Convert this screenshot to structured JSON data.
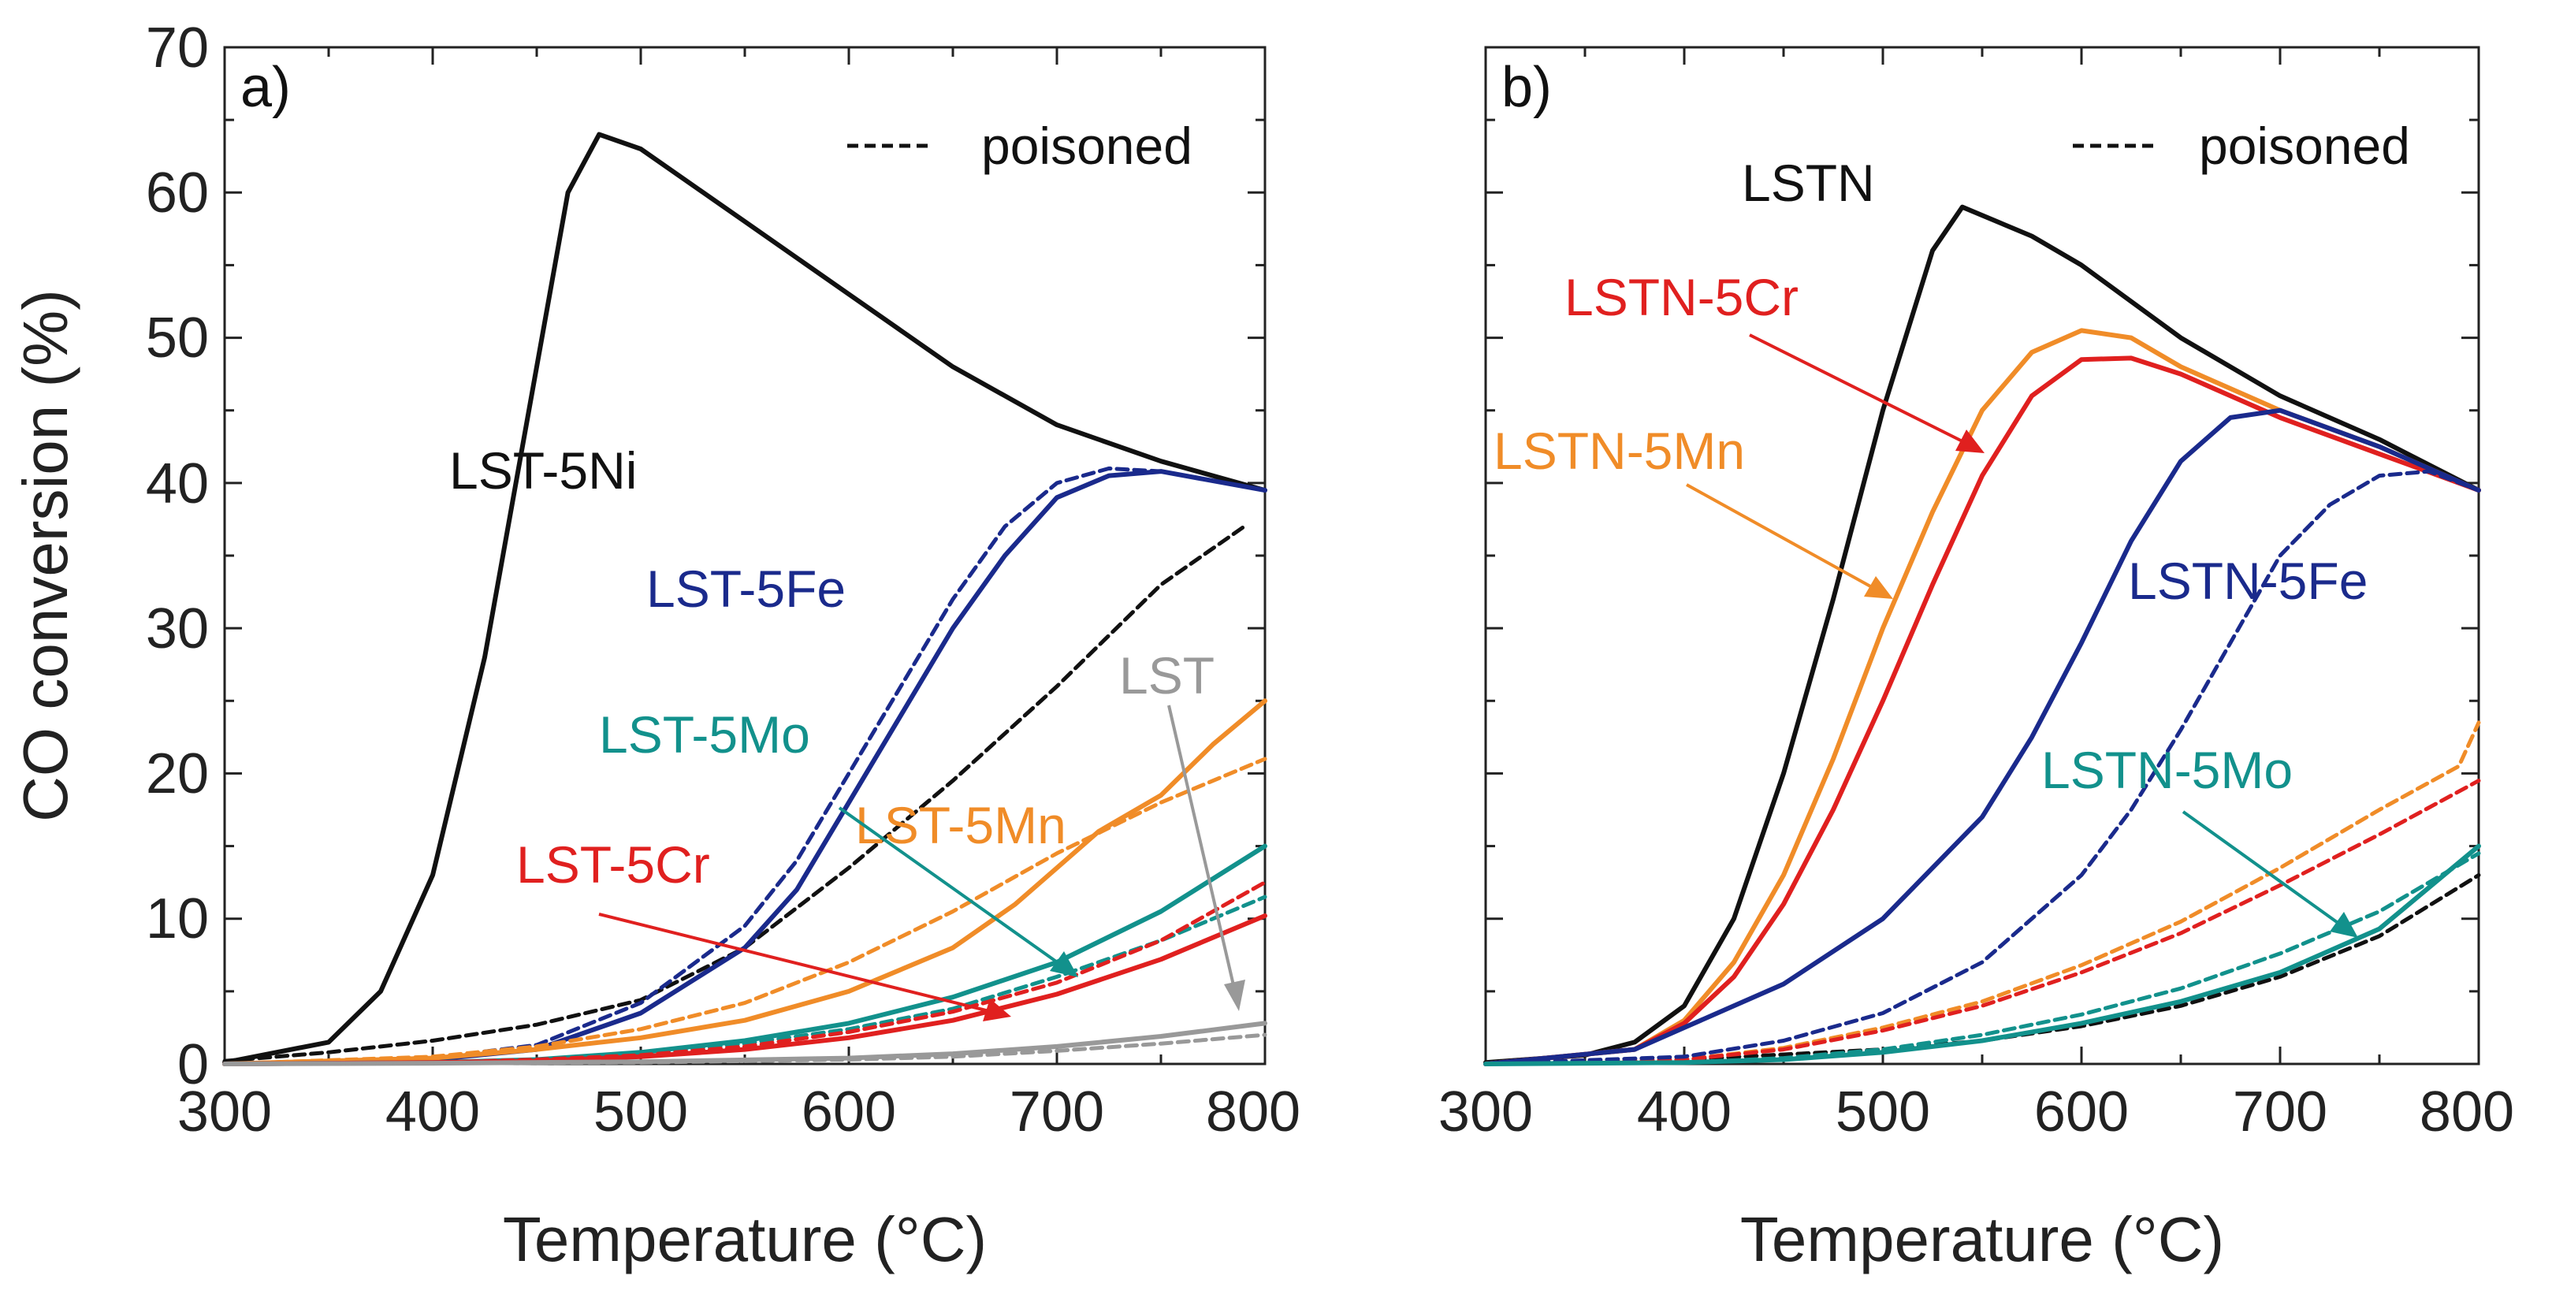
{
  "chart_data": [
    {
      "type": "line",
      "panel_label": "a)",
      "xlabel": "Temperature (°C)",
      "ylabel": "CO conversion (%)",
      "xlim": [
        300,
        800
      ],
      "ylim": [
        0,
        70
      ],
      "xticks": [
        "300",
        "400",
        "500",
        "600",
        "700",
        "800"
      ],
      "yticks": [
        "0",
        "10",
        "20",
        "30",
        "40",
        "50",
        "60",
        "70"
      ],
      "legend": {
        "entry": "poisoned",
        "style": "dashed",
        "placement": "top-right"
      },
      "series": [
        {
          "name": "LST-5Ni",
          "color": "#111111",
          "style": "solid",
          "x": [
            300,
            350,
            375,
            400,
            425,
            450,
            465,
            480,
            500,
            550,
            600,
            650,
            700,
            750,
            800
          ],
          "y": [
            0.1,
            1.5,
            5,
            13,
            28,
            48,
            60,
            64,
            63,
            58,
            53,
            48,
            44,
            41.5,
            39.5
          ]
        },
        {
          "name": "LST-5Ni",
          "color": "#111111",
          "style": "dashed",
          "x": [
            300,
            350,
            400,
            450,
            500,
            550,
            600,
            650,
            700,
            750,
            790
          ],
          "y": [
            0.2,
            0.8,
            1.6,
            2.7,
            4.4,
            8,
            13.5,
            19.5,
            26,
            33,
            37
          ]
        },
        {
          "name": "LST-5Fe",
          "color": "#1a2a8c",
          "style": "solid",
          "x": [
            300,
            400,
            450,
            500,
            550,
            575,
            600,
            625,
            650,
            675,
            700,
            725,
            750,
            800
          ],
          "y": [
            0,
            0.3,
            1,
            3.5,
            8,
            12,
            18,
            24,
            30,
            35,
            39,
            40.5,
            40.8,
            39.5
          ]
        },
        {
          "name": "LST-5Fe",
          "color": "#1a2a8c",
          "style": "dashed",
          "x": [
            300,
            400,
            450,
            500,
            550,
            575,
            600,
            625,
            650,
            675,
            700,
            725,
            750,
            800
          ],
          "y": [
            0,
            0.4,
            1.3,
            4.2,
            9.5,
            14,
            20,
            26,
            32,
            37,
            40,
            41,
            40.8,
            39.5
          ]
        },
        {
          "name": "LST-5Mn",
          "color": "#f08c28",
          "style": "solid",
          "x": [
            300,
            400,
            450,
            500,
            550,
            600,
            650,
            680,
            700,
            720,
            750,
            775,
            800
          ],
          "y": [
            0,
            0.4,
            1,
            1.8,
            3,
            5,
            8,
            11,
            13.5,
            16,
            18.5,
            22,
            25
          ]
        },
        {
          "name": "LST-5Mn",
          "color": "#f08c28",
          "style": "dashed",
          "x": [
            300,
            400,
            450,
            500,
            550,
            600,
            650,
            700,
            750,
            800
          ],
          "y": [
            0,
            0.5,
            1.2,
            2.4,
            4.2,
            7,
            10.5,
            14.5,
            18,
            21
          ]
        },
        {
          "name": "LST-5Mo",
          "color": "#12918c",
          "style": "solid",
          "x": [
            300,
            400,
            450,
            500,
            550,
            600,
            650,
            700,
            750,
            800
          ],
          "y": [
            0,
            0.1,
            0.3,
            0.8,
            1.6,
            2.8,
            4.6,
            7,
            10.5,
            15
          ]
        },
        {
          "name": "LST-5Mo",
          "color": "#12918c",
          "style": "dashed",
          "x": [
            300,
            400,
            450,
            500,
            550,
            600,
            650,
            700,
            750,
            800
          ],
          "y": [
            0,
            0.1,
            0.3,
            0.7,
            1.4,
            2.4,
            3.8,
            6,
            8.5,
            11.5
          ]
        },
        {
          "name": "LST-5Cr",
          "color": "#e0201f",
          "style": "solid",
          "x": [
            300,
            400,
            450,
            500,
            550,
            600,
            650,
            700,
            750,
            800
          ],
          "y": [
            0,
            0.1,
            0.2,
            0.5,
            1,
            1.8,
            3,
            4.8,
            7.2,
            10.2
          ]
        },
        {
          "name": "LST-5Cr",
          "color": "#e0201f",
          "style": "dashed",
          "x": [
            300,
            400,
            450,
            500,
            550,
            600,
            650,
            700,
            750,
            800
          ],
          "y": [
            0,
            0.1,
            0.3,
            0.6,
            1.2,
            2.2,
            3.6,
            5.6,
            8.5,
            12.5
          ]
        },
        {
          "name": "LST",
          "color": "#999999",
          "style": "solid",
          "x": [
            300,
            400,
            500,
            600,
            650,
            700,
            750,
            800
          ],
          "y": [
            0,
            0.05,
            0.15,
            0.4,
            0.7,
            1.2,
            1.9,
            2.8
          ]
        },
        {
          "name": "LST",
          "color": "#999999",
          "style": "dashed",
          "x": [
            300,
            400,
            500,
            600,
            650,
            700,
            750,
            800
          ],
          "y": [
            0,
            0.05,
            0.1,
            0.3,
            0.5,
            0.9,
            1.4,
            2
          ]
        }
      ],
      "labels": [
        {
          "text": "LST-5Ni",
          "color": "#111111"
        },
        {
          "text": "LST-5Fe",
          "color": "#1a2a8c"
        },
        {
          "text": "LST",
          "color": "#999999"
        },
        {
          "text": "LST-5Mo",
          "color": "#12918c"
        },
        {
          "text": "LST-5Mn",
          "color": "#f08c28"
        },
        {
          "text": "LST-5Cr",
          "color": "#e0201f"
        }
      ]
    },
    {
      "type": "line",
      "panel_label": "b)",
      "xlabel": "Temperature (°C)",
      "ylabel": "",
      "xlim": [
        300,
        800
      ],
      "ylim": [
        0,
        70
      ],
      "xticks": [
        "300",
        "400",
        "500",
        "600",
        "700",
        "800"
      ],
      "yticks": [
        "0",
        "10",
        "20",
        "30",
        "40",
        "50",
        "60",
        "70"
      ],
      "legend": {
        "entry": "poisoned",
        "style": "dashed",
        "placement": "top-right"
      },
      "series": [
        {
          "name": "LSTN",
          "color": "#111111",
          "style": "solid",
          "x": [
            300,
            350,
            375,
            400,
            425,
            450,
            475,
            500,
            525,
            540,
            575,
            600,
            650,
            700,
            750,
            800
          ],
          "y": [
            0.1,
            0.6,
            1.5,
            4,
            10,
            20,
            32,
            45,
            56,
            59,
            57,
            55,
            50,
            46,
            43,
            39.5
          ]
        },
        {
          "name": "LSTN",
          "color": "#111111",
          "style": "dashed",
          "x": [
            300,
            400,
            500,
            550,
            600,
            650,
            700,
            750,
            800
          ],
          "y": [
            0,
            0.3,
            1,
            1.6,
            2.6,
            4,
            6,
            8.8,
            13
          ]
        },
        {
          "name": "LSTN-5Mn",
          "color": "#f08c28",
          "style": "solid",
          "x": [
            300,
            375,
            400,
            425,
            450,
            475,
            500,
            525,
            550,
            575,
            600,
            625,
            650,
            700,
            750,
            800
          ],
          "y": [
            0,
            1,
            3,
            7,
            13,
            21,
            30,
            38,
            45,
            49,
            50.5,
            50,
            48,
            45,
            42.5,
            39.5
          ]
        },
        {
          "name": "LSTN-5Mn",
          "color": "#f08c28",
          "style": "dashed",
          "x": [
            300,
            400,
            450,
            500,
            550,
            600,
            650,
            700,
            750,
            790,
            800
          ],
          "y": [
            0,
            0.3,
            1.1,
            2.5,
            4.3,
            6.8,
            9.8,
            13.5,
            17.5,
            20.5,
            23.5
          ]
        },
        {
          "name": "LSTN-5Cr",
          "color": "#e0201f",
          "style": "solid",
          "x": [
            300,
            375,
            400,
            425,
            450,
            475,
            500,
            525,
            550,
            575,
            600,
            625,
            650,
            700,
            750,
            800
          ],
          "y": [
            0,
            1,
            2.8,
            6,
            11,
            17.5,
            25,
            33,
            40.5,
            46,
            48.5,
            48.6,
            47.5,
            44.5,
            42,
            39.5
          ]
        },
        {
          "name": "LSTN-5Cr",
          "color": "#e0201f",
          "style": "dashed",
          "x": [
            300,
            400,
            450,
            500,
            550,
            600,
            650,
            700,
            750,
            800
          ],
          "y": [
            0,
            0.3,
            1,
            2.3,
            4,
            6.3,
            9,
            12.3,
            15.8,
            19.5
          ]
        },
        {
          "name": "LSTN-5Fe",
          "color": "#1a2a8c",
          "style": "solid",
          "x": [
            300,
            375,
            400,
            450,
            500,
            550,
            575,
            600,
            625,
            650,
            675,
            700,
            750,
            800
          ],
          "y": [
            0,
            1,
            2.5,
            5.5,
            10,
            17,
            22.5,
            29,
            36,
            41.5,
            44.5,
            45,
            42.5,
            39.5
          ]
        },
        {
          "name": "LSTN-5Fe",
          "color": "#1a2a8c",
          "style": "dashed",
          "x": [
            300,
            400,
            450,
            500,
            550,
            600,
            625,
            650,
            675,
            700,
            725,
            750,
            775,
            800
          ],
          "y": [
            0,
            0.5,
            1.6,
            3.5,
            7,
            13,
            17.5,
            23,
            29,
            35,
            38.5,
            40.5,
            40.8,
            39.5
          ]
        },
        {
          "name": "LSTN-5Mo",
          "color": "#12918c",
          "style": "solid",
          "x": [
            300,
            400,
            450,
            500,
            550,
            600,
            650,
            700,
            750,
            800
          ],
          "y": [
            0,
            0.1,
            0.3,
            0.8,
            1.6,
            2.8,
            4.3,
            6.3,
            9.3,
            15
          ]
        },
        {
          "name": "LSTN-5Mo",
          "color": "#12918c",
          "style": "dashed",
          "x": [
            300,
            400,
            450,
            500,
            550,
            600,
            650,
            700,
            750,
            800
          ],
          "y": [
            0,
            0.1,
            0.4,
            1,
            2,
            3.4,
            5.2,
            7.6,
            10.5,
            14.5
          ]
        }
      ],
      "labels": [
        {
          "text": "LSTN",
          "color": "#111111"
        },
        {
          "text": "LSTN-5Cr",
          "color": "#e0201f"
        },
        {
          "text": "LSTN-5Mn",
          "color": "#f08c28"
        },
        {
          "text": "LSTN-5Fe",
          "color": "#1a2a8c"
        },
        {
          "text": "LSTN-5Mo",
          "color": "#12918c"
        }
      ]
    }
  ]
}
